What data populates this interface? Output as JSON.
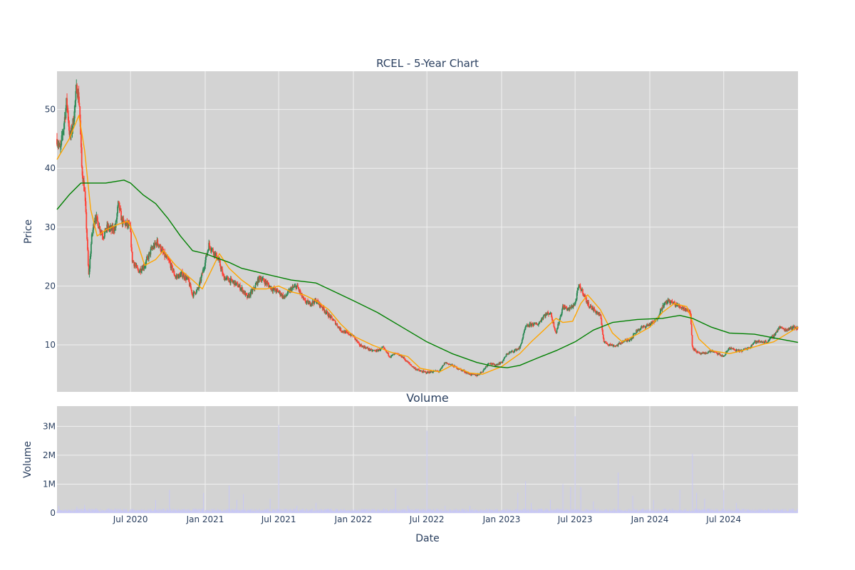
{
  "chart_data": {
    "type": "candlestick",
    "title": "RCEL - 5-Year Chart",
    "xlabel": "Date",
    "x_range": [
      "2020-01-02",
      "2024-12-31"
    ],
    "x_ticks": [
      {
        "date": "2020-07-01",
        "label": "Jul 2020"
      },
      {
        "date": "2021-01-01",
        "label": "Jan 2021"
      },
      {
        "date": "2021-07-01",
        "label": "Jul 2021"
      },
      {
        "date": "2022-01-01",
        "label": "Jan 2022"
      },
      {
        "date": "2022-07-01",
        "label": "Jul 2022"
      },
      {
        "date": "2023-01-01",
        "label": "Jan 2023"
      },
      {
        "date": "2023-07-01",
        "label": "Jul 2023"
      },
      {
        "date": "2024-01-01",
        "label": "Jan 2024"
      },
      {
        "date": "2024-07-01",
        "label": "Jul 2024"
      }
    ],
    "grid": true,
    "background_color": "#d3d3d3",
    "grid_color": "#f0f0f0",
    "price_panel": {
      "ylabel": "Price",
      "ylim": [
        2,
        56.5
      ],
      "y_ticks": [
        10,
        20,
        30,
        40,
        50
      ],
      "up_color": "#2e8b57",
      "down_color": "#ff4136",
      "close_path": [
        [
          "2020-01-02",
          45
        ],
        [
          "2020-01-10",
          43
        ],
        [
          "2020-01-18",
          47
        ],
        [
          "2020-01-26",
          51.5
        ],
        [
          "2020-02-03",
          45
        ],
        [
          "2020-02-11",
          48
        ],
        [
          "2020-02-20",
          54
        ],
        [
          "2020-02-26",
          51
        ],
        [
          "2020-03-03",
          40
        ],
        [
          "2020-03-10",
          36
        ],
        [
          "2020-03-16",
          28
        ],
        [
          "2020-03-20",
          21.5
        ],
        [
          "2020-03-27",
          28
        ],
        [
          "2020-04-05",
          32
        ],
        [
          "2020-04-15",
          30
        ],
        [
          "2020-04-25",
          28.5
        ],
        [
          "2020-05-05",
          30
        ],
        [
          "2020-05-15",
          29.5
        ],
        [
          "2020-05-25",
          30
        ],
        [
          "2020-06-01",
          34
        ],
        [
          "2020-06-10",
          31
        ],
        [
          "2020-06-20",
          30.5
        ],
        [
          "2020-06-30",
          30
        ],
        [
          "2020-07-05",
          24.5
        ],
        [
          "2020-07-20",
          22.5
        ],
        [
          "2020-08-05",
          23.5
        ],
        [
          "2020-08-20",
          26
        ],
        [
          "2020-09-05",
          27.5
        ],
        [
          "2020-09-20",
          25.5
        ],
        [
          "2020-10-05",
          24
        ],
        [
          "2020-10-20",
          21.5
        ],
        [
          "2020-11-05",
          22
        ],
        [
          "2020-11-20",
          21
        ],
        [
          "2020-12-01",
          18.5
        ],
        [
          "2020-12-15",
          19.5
        ],
        [
          "2020-12-28",
          23
        ],
        [
          "2021-01-10",
          27
        ],
        [
          "2021-01-25",
          25.5
        ],
        [
          "2021-02-05",
          24
        ],
        [
          "2021-02-15",
          21.5
        ],
        [
          "2021-03-01",
          21
        ],
        [
          "2021-03-15",
          20.5
        ],
        [
          "2021-04-01",
          19.5
        ],
        [
          "2021-04-15",
          18
        ],
        [
          "2021-05-01",
          19.5
        ],
        [
          "2021-05-15",
          21.5
        ],
        [
          "2021-06-01",
          20.5
        ],
        [
          "2021-06-15",
          19.5
        ],
        [
          "2021-07-01",
          19
        ],
        [
          "2021-07-15",
          18
        ],
        [
          "2021-08-01",
          19.5
        ],
        [
          "2021-08-15",
          20
        ],
        [
          "2021-09-01",
          17.5
        ],
        [
          "2021-09-15",
          17
        ],
        [
          "2021-10-01",
          17.5
        ],
        [
          "2021-10-15",
          16.5
        ],
        [
          "2021-11-01",
          15
        ],
        [
          "2021-11-15",
          14
        ],
        [
          "2021-12-01",
          12.5
        ],
        [
          "2021-12-15",
          12
        ],
        [
          "2022-01-01",
          11.5
        ],
        [
          "2022-01-15",
          10
        ],
        [
          "2022-02-01",
          9.5
        ],
        [
          "2022-02-15",
          9
        ],
        [
          "2022-03-01",
          9
        ],
        [
          "2022-03-15",
          9.5
        ],
        [
          "2022-04-01",
          8
        ],
        [
          "2022-04-15",
          8.5
        ],
        [
          "2022-05-01",
          8
        ],
        [
          "2022-05-15",
          7
        ],
        [
          "2022-06-01",
          6
        ],
        [
          "2022-06-15",
          5.5
        ],
        [
          "2022-07-01",
          5.3
        ],
        [
          "2022-07-20",
          5.5
        ],
        [
          "2022-08-01",
          5.5
        ],
        [
          "2022-08-15",
          7
        ],
        [
          "2022-09-01",
          6.5
        ],
        [
          "2022-09-15",
          6
        ],
        [
          "2022-10-01",
          5.5
        ],
        [
          "2022-10-15",
          5
        ],
        [
          "2022-11-01",
          4.8
        ],
        [
          "2022-11-15",
          5.5
        ],
        [
          "2022-12-01",
          7
        ],
        [
          "2022-12-15",
          6.5
        ],
        [
          "2023-01-01",
          7
        ],
        [
          "2023-01-15",
          8.5
        ],
        [
          "2023-02-01",
          9
        ],
        [
          "2023-02-15",
          9.5
        ],
        [
          "2023-03-01",
          13
        ],
        [
          "2023-03-15",
          13.5
        ],
        [
          "2023-04-01",
          13.5
        ],
        [
          "2023-04-15",
          15
        ],
        [
          "2023-05-01",
          15.5
        ],
        [
          "2023-05-15",
          12
        ],
        [
          "2023-06-01",
          16.5
        ],
        [
          "2023-06-15",
          16
        ],
        [
          "2023-07-01",
          17
        ],
        [
          "2023-07-10",
          20
        ],
        [
          "2023-07-20",
          19
        ],
        [
          "2023-08-01",
          17
        ],
        [
          "2023-08-15",
          16
        ],
        [
          "2023-09-01",
          15
        ],
        [
          "2023-09-10",
          10.5
        ],
        [
          "2023-09-25",
          10
        ],
        [
          "2023-10-10",
          9.8
        ],
        [
          "2023-10-25",
          10.5
        ],
        [
          "2023-11-15",
          11
        ],
        [
          "2023-12-01",
          12.5
        ],
        [
          "2023-12-15",
          13
        ],
        [
          "2024-01-01",
          13.5
        ],
        [
          "2024-01-15",
          14
        ],
        [
          "2024-02-01",
          16.5
        ],
        [
          "2024-02-15",
          17.5
        ],
        [
          "2024-03-01",
          17
        ],
        [
          "2024-03-15",
          16.5
        ],
        [
          "2024-04-01",
          16
        ],
        [
          "2024-04-10",
          15.5
        ],
        [
          "2024-04-15",
          9.5
        ],
        [
          "2024-05-01",
          8.5
        ],
        [
          "2024-05-15",
          8.5
        ],
        [
          "2024-06-01",
          9
        ],
        [
          "2024-06-15",
          8.5
        ],
        [
          "2024-07-01",
          8
        ],
        [
          "2024-07-15",
          9.5
        ],
        [
          "2024-08-01",
          9
        ],
        [
          "2024-08-15",
          9
        ],
        [
          "2024-09-01",
          9.5
        ],
        [
          "2024-09-15",
          10.5
        ],
        [
          "2024-10-01",
          10.5
        ],
        [
          "2024-10-15",
          10.5
        ],
        [
          "2024-11-01",
          11.5
        ],
        [
          "2024-11-15",
          13
        ],
        [
          "2024-12-01",
          12.5
        ],
        [
          "2024-12-15",
          13
        ],
        [
          "2024-12-31",
          12.8
        ]
      ],
      "moving_averages": [
        {
          "color": "#ffa500",
          "points": [
            [
              "2020-01-02",
              41.5
            ],
            [
              "2020-02-01",
              45
            ],
            [
              "2020-02-25",
              49
            ],
            [
              "2020-03-10",
              43
            ],
            [
              "2020-03-25",
              33
            ],
            [
              "2020-04-10",
              28.5
            ],
            [
              "2020-05-01",
              29.5
            ],
            [
              "2020-06-01",
              30.5
            ],
            [
              "2020-06-25",
              31
            ],
            [
              "2020-07-15",
              28
            ],
            [
              "2020-08-05",
              23.5
            ],
            [
              "2020-09-01",
              24.5
            ],
            [
              "2020-09-20",
              26
            ],
            [
              "2020-10-20",
              23.5
            ],
            [
              "2020-12-01",
              21
            ],
            [
              "2020-12-25",
              19.5
            ],
            [
              "2021-01-15",
              22.5
            ],
            [
              "2021-02-05",
              25.5
            ],
            [
              "2021-03-01",
              23
            ],
            [
              "2021-04-01",
              21
            ],
            [
              "2021-05-01",
              19.5
            ],
            [
              "2021-06-01",
              19.5
            ],
            [
              "2021-07-01",
              20
            ],
            [
              "2021-08-01",
              19
            ],
            [
              "2021-09-01",
              18.5
            ],
            [
              "2021-10-01",
              17.5
            ],
            [
              "2021-11-01",
              16
            ],
            [
              "2021-12-01",
              13.5
            ],
            [
              "2022-01-01",
              11.5
            ],
            [
              "2022-02-15",
              10
            ],
            [
              "2022-04-01",
              8.8
            ],
            [
              "2022-05-15",
              8
            ],
            [
              "2022-06-15",
              6
            ],
            [
              "2022-08-01",
              5.4
            ],
            [
              "2022-09-01",
              6.5
            ],
            [
              "2022-10-15",
              5.2
            ],
            [
              "2022-11-15",
              5
            ],
            [
              "2023-01-01",
              6.3
            ],
            [
              "2023-02-15",
              8.5
            ],
            [
              "2023-03-15",
              10.5
            ],
            [
              "2023-04-15",
              12.5
            ],
            [
              "2023-05-15",
              14.5
            ],
            [
              "2023-06-01",
              13.8
            ],
            [
              "2023-06-25",
              14
            ],
            [
              "2023-07-15",
              17
            ],
            [
              "2023-08-01",
              18.5
            ],
            [
              "2023-09-01",
              16
            ],
            [
              "2023-10-01",
              12
            ],
            [
              "2023-10-25",
              10.5
            ],
            [
              "2023-12-01",
              11.8
            ],
            [
              "2024-01-01",
              13
            ],
            [
              "2024-02-01",
              15.5
            ],
            [
              "2024-03-01",
              17
            ],
            [
              "2024-04-01",
              16.5
            ],
            [
              "2024-05-01",
              11
            ],
            [
              "2024-06-01",
              9
            ],
            [
              "2024-07-15",
              8.5
            ],
            [
              "2024-08-15",
              9
            ],
            [
              "2024-10-01",
              10
            ],
            [
              "2024-11-01",
              10.5
            ],
            [
              "2024-12-31",
              13
            ]
          ]
        },
        {
          "color": "#008000",
          "points": [
            [
              "2020-01-02",
              33
            ],
            [
              "2020-02-01",
              35.5
            ],
            [
              "2020-03-01",
              37.5
            ],
            [
              "2020-05-01",
              37.5
            ],
            [
              "2020-06-15",
              38
            ],
            [
              "2020-07-01",
              37.5
            ],
            [
              "2020-08-01",
              35.5
            ],
            [
              "2020-09-01",
              34
            ],
            [
              "2020-10-01",
              31.5
            ],
            [
              "2020-11-01",
              28.5
            ],
            [
              "2020-12-01",
              26
            ],
            [
              "2021-01-01",
              25.5
            ],
            [
              "2021-03-01",
              24
            ],
            [
              "2021-04-01",
              23
            ],
            [
              "2021-06-01",
              22
            ],
            [
              "2021-08-01",
              21
            ],
            [
              "2021-10-01",
              20.5
            ],
            [
              "2021-11-01",
              19.5
            ],
            [
              "2022-01-01",
              17.5
            ],
            [
              "2022-03-01",
              15.5
            ],
            [
              "2022-05-01",
              13
            ],
            [
              "2022-07-01",
              10.5
            ],
            [
              "2022-09-01",
              8.5
            ],
            [
              "2022-11-01",
              7
            ],
            [
              "2022-12-15",
              6.3
            ],
            [
              "2023-01-15",
              6.1
            ],
            [
              "2023-02-15",
              6.5
            ],
            [
              "2023-04-01",
              7.8
            ],
            [
              "2023-05-15",
              9
            ],
            [
              "2023-07-01",
              10.5
            ],
            [
              "2023-08-15",
              12.5
            ],
            [
              "2023-10-01",
              13.8
            ],
            [
              "2023-12-01",
              14.3
            ],
            [
              "2024-02-01",
              14.5
            ],
            [
              "2024-03-15",
              15
            ],
            [
              "2024-04-15",
              14.5
            ],
            [
              "2024-06-01",
              13
            ],
            [
              "2024-07-15",
              12
            ],
            [
              "2024-09-15",
              11.8
            ],
            [
              "2024-11-15",
              11
            ],
            [
              "2024-12-31",
              10.4
            ]
          ]
        }
      ]
    },
    "volume_panel": {
      "title": "Volume",
      "ylabel": "Volume",
      "ylim": [
        0,
        3700000
      ],
      "y_ticks": [
        {
          "value": 0,
          "label": "0"
        },
        {
          "value": 1000000,
          "label": "1M"
        },
        {
          "value": 2000000,
          "label": "2M"
        },
        {
          "value": 3000000,
          "label": "3M"
        }
      ],
      "bar_color": "#c8c8f5",
      "baseline": 120000,
      "spikes": [
        [
          "2020-01-06",
          250000
        ],
        [
          "2020-02-20",
          220000
        ],
        [
          "2020-03-10",
          280000
        ],
        [
          "2020-09-01",
          450000
        ],
        [
          "2020-10-05",
          800000
        ],
        [
          "2020-12-28",
          700000
        ],
        [
          "2021-03-01",
          950000
        ],
        [
          "2021-03-20",
          450000
        ],
        [
          "2021-04-05",
          650000
        ],
        [
          "2021-06-10",
          500000
        ],
        [
          "2021-07-01",
          3050000
        ],
        [
          "2021-08-15",
          250000
        ],
        [
          "2021-10-01",
          350000
        ],
        [
          "2022-04-15",
          850000
        ],
        [
          "2022-05-15",
          250000
        ],
        [
          "2022-07-01",
          2850000
        ],
        [
          "2022-08-15",
          250000
        ],
        [
          "2022-10-15",
          250000
        ],
        [
          "2023-02-10",
          700000
        ],
        [
          "2023-03-01",
          1100000
        ],
        [
          "2023-03-15",
          350000
        ],
        [
          "2023-05-01",
          450000
        ],
        [
          "2023-06-01",
          1000000
        ],
        [
          "2023-06-20",
          900000
        ],
        [
          "2023-07-01",
          3350000
        ],
        [
          "2023-07-15",
          900000
        ],
        [
          "2023-08-15",
          400000
        ],
        [
          "2023-10-15",
          1400000
        ],
        [
          "2023-11-20",
          600000
        ],
        [
          "2024-01-10",
          450000
        ],
        [
          "2024-03-15",
          800000
        ],
        [
          "2024-04-15",
          2050000
        ],
        [
          "2024-04-25",
          700000
        ],
        [
          "2024-05-15",
          500000
        ],
        [
          "2024-07-01",
          800000
        ],
        [
          "2024-08-01",
          350000
        ]
      ]
    }
  }
}
